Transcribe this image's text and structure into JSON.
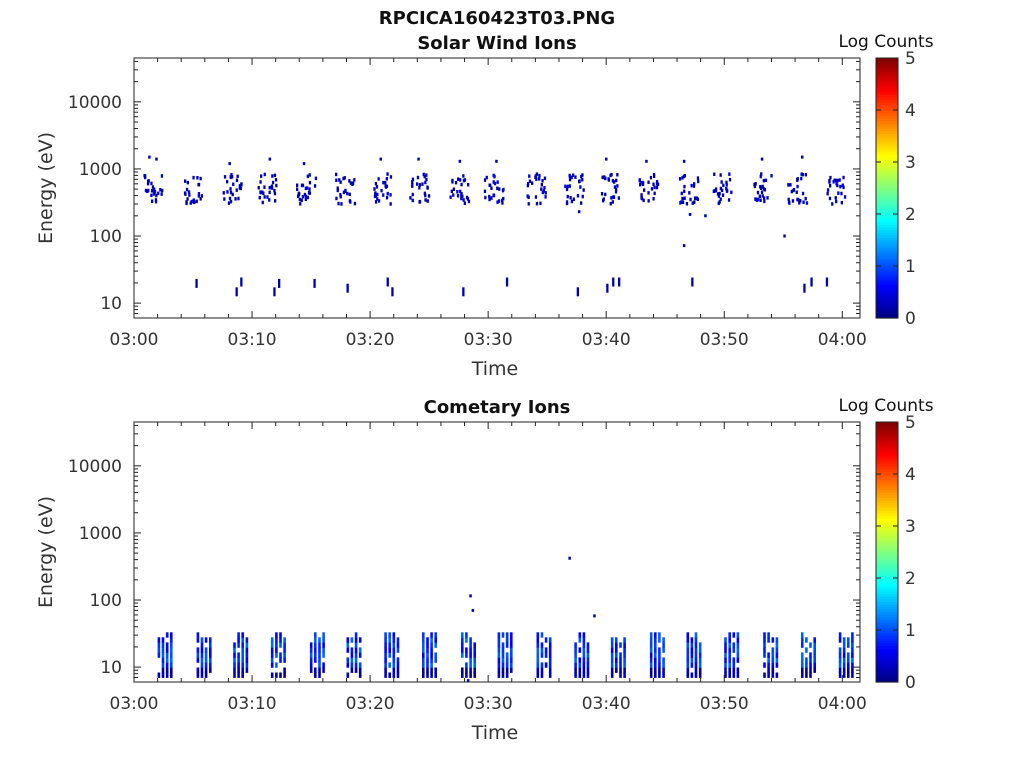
{
  "figure_title": "RPCICA160423T03.PNG",
  "colorbar": {
    "title": "Log Counts",
    "min": 0,
    "max": 5,
    "ticks": [
      "0",
      "1",
      "2",
      "3",
      "4",
      "5"
    ],
    "colormap": "jet"
  },
  "chart_data": [
    {
      "type": "heatmap",
      "title": "Solar Wind Ions",
      "xlabel": "Time",
      "ylabel": "Energy (eV)",
      "x_unit": "minutes after 03:00",
      "xlim": [
        0,
        61.5
      ],
      "ylim": [
        6,
        45000
      ],
      "y_scale": "log",
      "x_ticks": [
        {
          "value": 0,
          "label": "03:00"
        },
        {
          "value": 10,
          "label": "03:10"
        },
        {
          "value": 20,
          "label": "03:20"
        },
        {
          "value": 30,
          "label": "03:30"
        },
        {
          "value": 40,
          "label": "03:40"
        },
        {
          "value": 50,
          "label": "03:50"
        },
        {
          "value": 60,
          "label": "04:00"
        }
      ],
      "y_ticks": [
        {
          "value": 10,
          "label": "10"
        },
        {
          "value": 100,
          "label": "100"
        },
        {
          "value": 1000,
          "label": "1000"
        },
        {
          "value": 10000,
          "label": "10000"
        }
      ],
      "main_band": {
        "center_ev": 500,
        "log_counts": 0.3
      },
      "bursts_min": [
        1.2,
        4.7,
        7.9,
        10.9,
        14.2,
        17.5,
        20.6,
        23.8,
        27.2,
        30.1,
        33.7,
        36.9,
        40.0,
        43.2,
        46.6,
        49.5,
        52.8,
        55.8,
        59.1
      ],
      "outliers": [
        {
          "t": 1.2,
          "e": 1500,
          "v": 0.3
        },
        {
          "t": 1.8,
          "e": 1400,
          "v": 0.3
        },
        {
          "t": 8.0,
          "e": 1200,
          "v": 0.3
        },
        {
          "t": 11.4,
          "e": 1400,
          "v": 0.3
        },
        {
          "t": 14.3,
          "e": 1200,
          "v": 0.3
        },
        {
          "t": 20.8,
          "e": 1400,
          "v": 0.3
        },
        {
          "t": 24.0,
          "e": 1400,
          "v": 0.3
        },
        {
          "t": 27.5,
          "e": 1300,
          "v": 0.3
        },
        {
          "t": 30.6,
          "e": 1300,
          "v": 0.3
        },
        {
          "t": 37.6,
          "e": 230,
          "v": 0.3
        },
        {
          "t": 39.9,
          "e": 1400,
          "v": 0.3
        },
        {
          "t": 43.3,
          "e": 1300,
          "v": 0.3
        },
        {
          "t": 46.5,
          "e": 1300,
          "v": 0.3
        },
        {
          "t": 46.5,
          "e": 72,
          "v": 0.3
        },
        {
          "t": 47.0,
          "e": 210,
          "v": 0.3
        },
        {
          "t": 48.3,
          "e": 200,
          "v": 0.3
        },
        {
          "t": 53.1,
          "e": 1400,
          "v": 0.3
        },
        {
          "t": 55.0,
          "e": 100,
          "v": 0.3
        },
        {
          "t": 56.5,
          "e": 1500,
          "v": 0.3
        }
      ],
      "low_energy_marks": [
        {
          "t": 5.2,
          "e": 20
        },
        {
          "t": 8.6,
          "e": 15
        },
        {
          "t": 9.0,
          "e": 21
        },
        {
          "t": 11.8,
          "e": 15
        },
        {
          "t": 12.2,
          "e": 20
        },
        {
          "t": 15.2,
          "e": 20
        },
        {
          "t": 18.0,
          "e": 17
        },
        {
          "t": 21.4,
          "e": 21
        },
        {
          "t": 21.8,
          "e": 15
        },
        {
          "t": 27.8,
          "e": 15
        },
        {
          "t": 31.5,
          "e": 21
        },
        {
          "t": 37.5,
          "e": 15
        },
        {
          "t": 40.0,
          "e": 17
        },
        {
          "t": 40.5,
          "e": 21
        },
        {
          "t": 41.0,
          "e": 21
        },
        {
          "t": 47.2,
          "e": 21
        },
        {
          "t": 56.7,
          "e": 17
        },
        {
          "t": 57.3,
          "e": 21
        },
        {
          "t": 58.6,
          "e": 21
        }
      ]
    },
    {
      "type": "heatmap",
      "title": "Cometary Ions",
      "xlabel": "Time",
      "ylabel": "Energy (eV)",
      "x_unit": "minutes after 03:00",
      "xlim": [
        0,
        61.5
      ],
      "ylim": [
        6,
        45000
      ],
      "y_scale": "log",
      "x_ticks": [
        {
          "value": 0,
          "label": "03:00"
        },
        {
          "value": 10,
          "label": "03:10"
        },
        {
          "value": 20,
          "label": "03:20"
        },
        {
          "value": 30,
          "label": "03:30"
        },
        {
          "value": 40,
          "label": "03:40"
        },
        {
          "value": 50,
          "label": "03:50"
        },
        {
          "value": 60,
          "label": "04:00"
        }
      ],
      "y_ticks": [
        {
          "value": 10,
          "label": "10"
        },
        {
          "value": 100,
          "label": "100"
        },
        {
          "value": 1000,
          "label": "1000"
        },
        {
          "value": 10000,
          "label": "10000"
        }
      ],
      "energy_range_ev": [
        7,
        33
      ],
      "bursts_min": [
        2.0,
        5.3,
        8.4,
        11.6,
        14.9,
        18.0,
        21.2,
        24.4,
        27.7,
        30.8,
        34.1,
        37.3,
        40.4,
        43.7,
        46.8,
        50.0,
        53.3,
        56.5,
        59.7
      ],
      "outliers": [
        {
          "t": 28.4,
          "e": 115,
          "v": 0.3
        },
        {
          "t": 28.6,
          "e": 70,
          "v": 0.3
        },
        {
          "t": 36.8,
          "e": 420,
          "v": 0.3
        },
        {
          "t": 38.9,
          "e": 58,
          "v": 0.3
        },
        {
          "t": 28.2,
          "e": 6.3,
          "v": 0.3
        }
      ]
    }
  ]
}
